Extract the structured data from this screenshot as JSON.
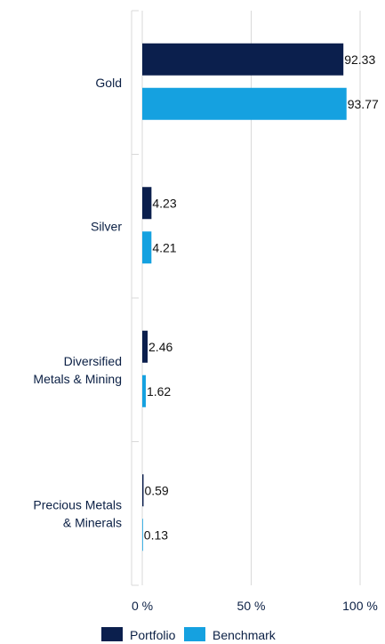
{
  "chart_data": {
    "type": "bar",
    "orientation": "horizontal",
    "categories": [
      "Gold",
      "Silver",
      "Diversified Metals & Mining",
      "Precious Metals & Minerals"
    ],
    "category_lines": [
      [
        "Gold"
      ],
      [
        "Silver"
      ],
      [
        "Diversified",
        "Metals & Mining"
      ],
      [
        "Precious Metals",
        "& Minerals"
      ]
    ],
    "series": [
      {
        "name": "Portfolio",
        "color": "#0b1f4d",
        "values": [
          92.33,
          4.23,
          2.46,
          0.59
        ],
        "labels": [
          "92.33",
          "4.23",
          "2.46",
          "0.59"
        ]
      },
      {
        "name": "Benchmark",
        "color": "#15a1e0",
        "values": [
          93.77,
          4.21,
          1.62,
          0.13
        ],
        "labels": [
          "93.77",
          "4.21",
          "1.62",
          "0.13"
        ]
      }
    ],
    "xlim": [
      0,
      100
    ],
    "xticks": [
      0,
      50,
      100
    ],
    "xtick_labels": [
      "0 %",
      "50 %",
      "100 %"
    ],
    "grid": true,
    "legend_position": "bottom"
  }
}
